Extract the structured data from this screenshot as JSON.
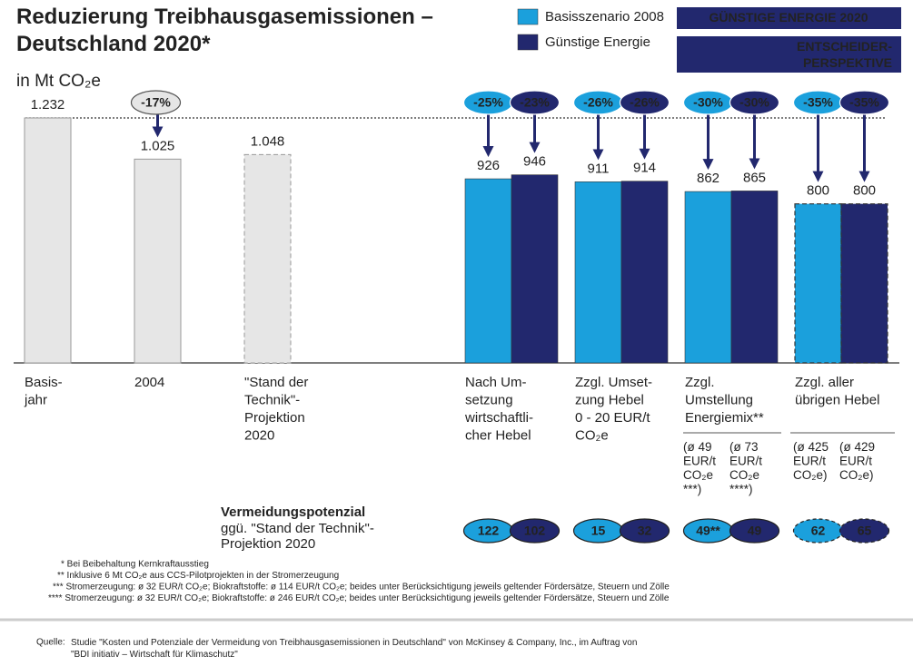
{
  "title": "Reduzierung Treibhausgasemissionen –\nDeutschland 2020*",
  "unit": "in Mt CO₂e",
  "badges": [
    "GÜNSTIGE ENERGIE 2020",
    "ENTSCHEIDER-\nPERSPEKTIVE"
  ],
  "chart_data": {
    "type": "bar",
    "categories": [
      "Basis-\njahr",
      "2004",
      "\"Stand der\nTechnik\"-\nProjektion\n2020",
      "Nach Um-\nsetzung\nwirtschaftli-\ncher Hebel",
      "Zzgl. Umset-\nzung Hebel\n0 - 20 EUR/t\nCO₂e",
      "Zzgl.\nUmstellung\nEnergiemix**",
      "Zzgl. aller\nübrigen Hebel"
    ],
    "reference_bars": {
      "color": "#e6e6e6",
      "values": [
        1232,
        1025,
        1048,
        null,
        null,
        null,
        null
      ],
      "value_labels": [
        "1.232",
        "1.025",
        "1.048",
        null,
        null,
        null,
        null
      ],
      "reductions": [
        null,
        {
          "value": -17,
          "label": "-17%"
        },
        null,
        null,
        null,
        null,
        null
      ]
    },
    "series": [
      {
        "name": "Basisszenario 2008",
        "color": "#1ba0dc",
        "values": [
          null,
          null,
          null,
          926,
          911,
          862,
          800
        ],
        "reductions": [
          null,
          null,
          null,
          {
            "value": -25,
            "label": "-25%"
          },
          {
            "value": -26,
            "label": "-26%"
          },
          {
            "value": -30,
            "label": "-30%"
          },
          {
            "value": -35,
            "label": "-35%"
          }
        ],
        "cost_labels": [
          null,
          null,
          null,
          null,
          null,
          "(ø 49\nEUR/t\nCO₂e\n***)",
          "(ø 425\nEUR/t\nCO₂e)"
        ],
        "potential": [
          null,
          null,
          null,
          122,
          15,
          {
            "value": 49,
            "label": "49**"
          },
          62
        ]
      },
      {
        "name": "Günstige Energie",
        "color": "#22286e",
        "values": [
          null,
          null,
          null,
          946,
          914,
          865,
          800
        ],
        "reductions": [
          null,
          null,
          null,
          {
            "value": -23,
            "label": "-23%"
          },
          {
            "value": -26,
            "label": "-26%"
          },
          {
            "value": -30,
            "label": "-30%"
          },
          {
            "value": -35,
            "label": "-35%"
          }
        ],
        "cost_labels": [
          null,
          null,
          null,
          null,
          null,
          "(ø 73\nEUR/t\nCO₂e\n****)",
          "(ø 429\nEUR/t\nCO₂e)"
        ],
        "potential": [
          null,
          null,
          null,
          102,
          32,
          49,
          65
        ]
      }
    ],
    "dashed_categories": [
      2,
      6
    ],
    "potential_title": "Vermeidungspotenzial",
    "potential_subtitle": "ggü. \"Stand der Technik\"-\nProjektion 2020"
  },
  "footnotes": [
    "* Bei Beibehaltung Kernkraftausstieg",
    "** Inklusive 6 Mt CO₂e aus CCS-Pilotprojekten in der Stromerzeugung",
    "*** Stromerzeugung: ø 32 EUR/t CO₂e; Biokraftstoffe: ø 114 EUR/t CO₂e; beides unter Berücksichtigung jeweils geltender Fördersätze, Steuern und Zölle",
    "**** Stromerzeugung: ø 32 EUR/t CO₂e; Biokraftstoffe: ø 246 EUR/t CO₂e; beides unter Berücksichtigung jeweils geltender Fördersätze, Steuern und Zölle"
  ],
  "source": [
    "Quelle:",
    "Studie \"Kosten und Potenziale der Vermeidung von Treibhausgasemissionen in Deutschland\" von McKinsey & Company, Inc., im Auftrag von\n\"BDI initiativ – Wirtschaft für Klimaschutz\""
  ]
}
